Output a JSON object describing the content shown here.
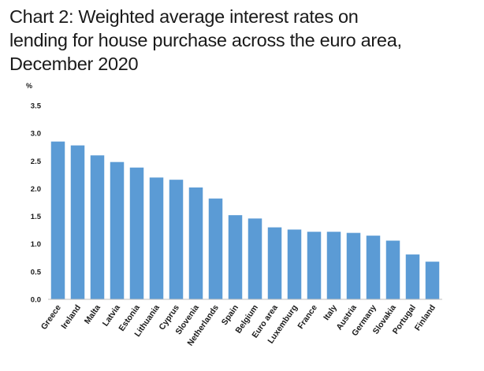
{
  "title_lines": [
    "Chart 2: Weighted average interest rates on",
    "lending for house purchase across the euro area,",
    "December 2020"
  ],
  "chart_data": {
    "type": "bar",
    "title": "Chart 2: Weighted average interest rates on lending for house purchase across the euro area, December 2020",
    "ylabel": "%",
    "ylim": [
      0,
      3.5
    ],
    "yticks": [
      "0.0",
      "0.5",
      "1.0",
      "1.5",
      "2.0",
      "2.5",
      "3.0",
      "3.5"
    ],
    "grid": false,
    "bar_color": "#5b9bd5",
    "categories": [
      "Greece",
      "Ireland",
      "Malta",
      "Latvia",
      "Estonia",
      "Lithuania",
      "Cyprus",
      "Slovenia",
      "Netherlands",
      "Spain",
      "Belgium",
      "Euro area",
      "Luxemburg",
      "France",
      "Italy",
      "Austria",
      "Germany",
      "Slovakia",
      "Portugal",
      "Finland"
    ],
    "values": [
      2.85,
      2.78,
      2.6,
      2.48,
      2.38,
      2.2,
      2.16,
      2.02,
      1.82,
      1.52,
      1.46,
      1.3,
      1.26,
      1.22,
      1.22,
      1.2,
      1.15,
      1.06,
      0.81,
      0.68
    ]
  }
}
